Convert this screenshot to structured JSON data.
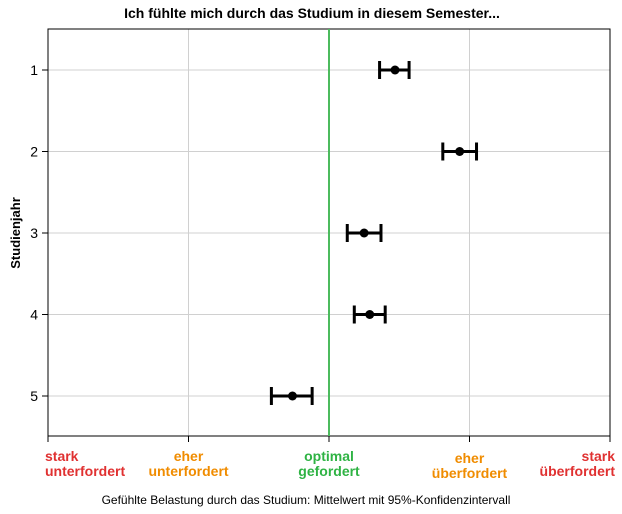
{
  "chart_data": {
    "type": "errorbar",
    "title": "Ich fühlte mich durch das Studium in diesem Semester...",
    "ylabel": "Studienjahr",
    "xlabel": "Gefühlte Belastung durch das Studium: Mittelwert mit 95%-Konfidenzintervall",
    "xlim": [
      1,
      5
    ],
    "y_categories": [
      "1",
      "2",
      "3",
      "4",
      "5"
    ],
    "x_ticks": [
      {
        "value": 1,
        "lines": [
          "stark",
          "unterfordert"
        ],
        "color": "#e03131"
      },
      {
        "value": 2,
        "lines": [
          "eher",
          "unterfordert"
        ],
        "color": "#f08c00"
      },
      {
        "value": 3,
        "lines": [
          "optimal",
          "gefordert"
        ],
        "color": "#2fb344"
      },
      {
        "value": 4,
        "lines": [
          "eher",
          "überfordert"
        ],
        "color": "#f08c00"
      },
      {
        "value": 5,
        "lines": [
          "stark",
          "überfordert"
        ],
        "color": "#e03131"
      }
    ],
    "reference_line": {
      "value": 3,
      "color": "#4cbb5e"
    },
    "points": [
      {
        "category": "1",
        "mean": 3.47,
        "ci_low": 3.36,
        "ci_high": 3.57
      },
      {
        "category": "2",
        "mean": 3.93,
        "ci_low": 3.81,
        "ci_high": 4.05
      },
      {
        "category": "3",
        "mean": 3.25,
        "ci_low": 3.13,
        "ci_high": 3.37
      },
      {
        "category": "4",
        "mean": 3.29,
        "ci_low": 3.18,
        "ci_high": 3.4
      },
      {
        "category": "5",
        "mean": 2.74,
        "ci_low": 2.59,
        "ci_high": 2.88
      }
    ],
    "grid": true,
    "colors": {
      "marker": "#000000",
      "grid": "#d0d0d0",
      "axis": "#000000"
    }
  }
}
